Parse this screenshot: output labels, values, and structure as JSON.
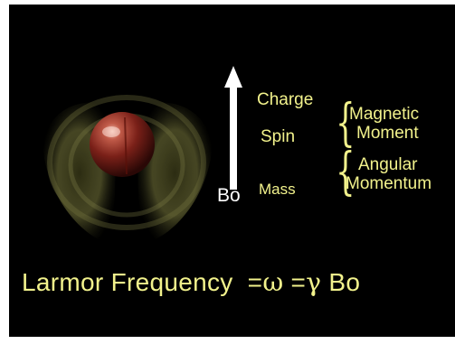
{
  "labels": {
    "charge": "Charge",
    "spin": "Spin",
    "mass": "Mass",
    "magnetic_line1": "Magnetic",
    "magnetic_line2": "Moment",
    "angular_line1": "Angular",
    "angular_line2": "Momentum",
    "field": "Bo"
  },
  "formula": {
    "name": "Larmor Frequency",
    "eq1": "=",
    "omega": "ω",
    "eq2": "=",
    "gamma": "γ",
    "field": "Bo"
  },
  "colors": {
    "background": "#000000",
    "label_text": "#f2f28c",
    "field_arrow": "#ffffff",
    "sphere": "#8a2a22",
    "field_lobes": "#c8c87a"
  },
  "icons": {
    "particle": "sphere-icon",
    "field_direction": "arrow-up-icon"
  }
}
